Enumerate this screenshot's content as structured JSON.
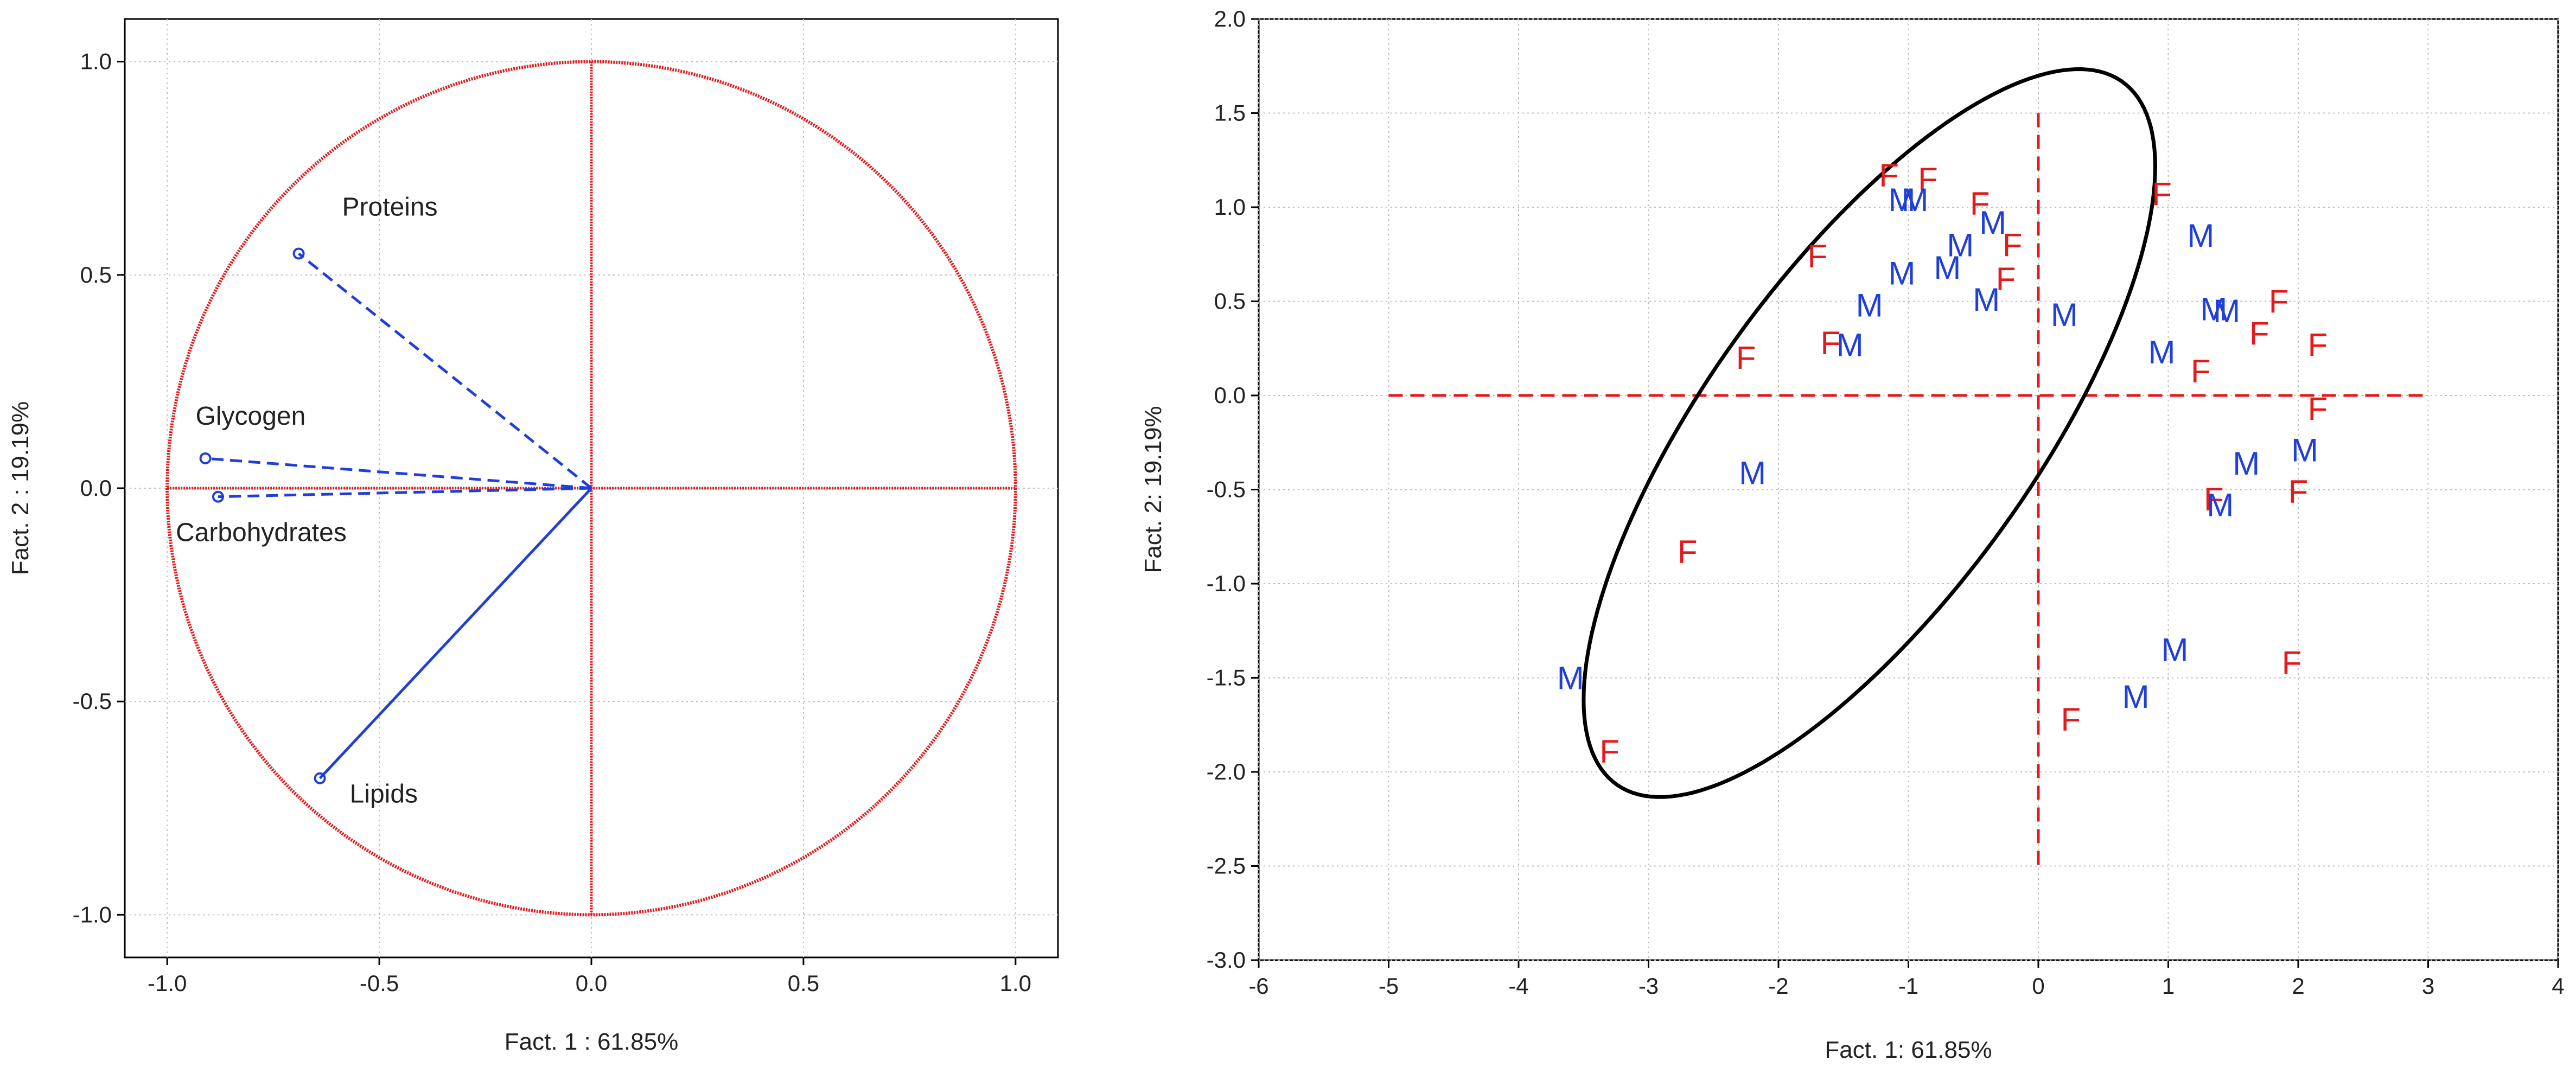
{
  "chart_data": [
    {
      "type": "scatter",
      "subtype": "correlation-circle",
      "xlabel": "Fact.  1 : 61.85%",
      "ylabel": "Fact.  2 : 19.19%",
      "xlim": [
        -1.1,
        1.1
      ],
      "ylim": [
        -1.1,
        1.1
      ],
      "xticks": [
        "-1.0",
        "-0.5",
        "0.0",
        "0.5",
        "1.0"
      ],
      "yticks": [
        "-1.0",
        "-0.5",
        "0.0",
        "0.5",
        "1.0"
      ],
      "grid": true,
      "unit_circle": {
        "radius": 1.0,
        "color": "#e31a1c"
      },
      "variables": [
        {
          "name": "Proteins",
          "x": -0.69,
          "y": 0.55,
          "line": "dashed"
        },
        {
          "name": "Glycogen",
          "x": -0.91,
          "y": 0.07,
          "line": "dashed"
        },
        {
          "name": "Carbohydrates",
          "x": -0.88,
          "y": -0.02,
          "line": "dashed"
        },
        {
          "name": "Lipids",
          "x": -0.64,
          "y": -0.68,
          "line": "solid"
        }
      ],
      "vector_color": "#1f3fd8"
    },
    {
      "type": "scatter",
      "xlabel": "Fact.  1: 61.85%",
      "ylabel": "Fact.  2: 19.19%",
      "xlim": [
        -6,
        4
      ],
      "ylim": [
        -3.0,
        2.0
      ],
      "xticks": [
        "-6",
        "-5",
        "-4",
        "-3",
        "-2",
        "-1",
        "0",
        "1",
        "2",
        "3",
        "4"
      ],
      "yticks": [
        "-3.0",
        "-2.5",
        "-2.0",
        "-1.5",
        "-1.0",
        "-0.5",
        "0.0",
        "0.5",
        "1.0",
        "1.5",
        "2.0"
      ],
      "grid": true,
      "colors": {
        "F": "#e31a1c",
        "M": "#1f3fd8"
      },
      "points": [
        {
          "label": "F",
          "x": -1.15,
          "y": 1.17
        },
        {
          "label": "F",
          "x": -0.85,
          "y": 1.15
        },
        {
          "label": "F",
          "x": -0.45,
          "y": 1.02
        },
        {
          "label": "F",
          "x": 0.95,
          "y": 1.07
        },
        {
          "label": "F",
          "x": -0.2,
          "y": 0.8
        },
        {
          "label": "F",
          "x": -1.7,
          "y": 0.74
        },
        {
          "label": "F",
          "x": -0.25,
          "y": 0.62
        },
        {
          "label": "F",
          "x": 1.85,
          "y": 0.5
        },
        {
          "label": "F",
          "x": 1.7,
          "y": 0.33
        },
        {
          "label": "F",
          "x": 2.15,
          "y": 0.27
        },
        {
          "label": "F",
          "x": -1.6,
          "y": 0.28
        },
        {
          "label": "F",
          "x": -2.25,
          "y": 0.2
        },
        {
          "label": "F",
          "x": 1.25,
          "y": 0.13
        },
        {
          "label": "F",
          "x": 2.15,
          "y": -0.07
        },
        {
          "label": "F",
          "x": 1.35,
          "y": -0.55
        },
        {
          "label": "F",
          "x": 2.0,
          "y": -0.51
        },
        {
          "label": "F",
          "x": -2.7,
          "y": -0.83
        },
        {
          "label": "F",
          "x": 1.95,
          "y": -1.42
        },
        {
          "label": "F",
          "x": 0.25,
          "y": -1.72
        },
        {
          "label": "F",
          "x": -3.3,
          "y": -1.89
        },
        {
          "label": "M",
          "x": -1.05,
          "y": 1.04
        },
        {
          "label": "M",
          "x": -0.95,
          "y": 1.04
        },
        {
          "label": "M",
          "x": -0.35,
          "y": 0.92
        },
        {
          "label": "M",
          "x": -0.6,
          "y": 0.8
        },
        {
          "label": "M",
          "x": 1.25,
          "y": 0.85
        },
        {
          "label": "M",
          "x": -1.05,
          "y": 0.65
        },
        {
          "label": "M",
          "x": -0.7,
          "y": 0.68
        },
        {
          "label": "M",
          "x": -1.3,
          "y": 0.48
        },
        {
          "label": "M",
          "x": -0.4,
          "y": 0.51
        },
        {
          "label": "M",
          "x": 0.2,
          "y": 0.43
        },
        {
          "label": "M",
          "x": 1.35,
          "y": 0.46
        },
        {
          "label": "M",
          "x": 1.45,
          "y": 0.45
        },
        {
          "label": "M",
          "x": -1.45,
          "y": 0.27
        },
        {
          "label": "M",
          "x": 0.95,
          "y": 0.23
        },
        {
          "label": "M",
          "x": 2.05,
          "y": -0.29
        },
        {
          "label": "M",
          "x": 1.6,
          "y": -0.36
        },
        {
          "label": "M",
          "x": -2.2,
          "y": -0.41
        },
        {
          "label": "M",
          "x": 1.4,
          "y": -0.58
        },
        {
          "label": "M",
          "x": 1.05,
          "y": -1.35
        },
        {
          "label": "M",
          "x": 0.75,
          "y": -1.6
        },
        {
          "label": "M",
          "x": -3.6,
          "y": -1.5
        }
      ],
      "reference_lines": {
        "x": 0,
        "y": 0,
        "style": "dashed",
        "color": "#e31a1c",
        "x_span": [
          -5,
          3
        ],
        "y_span": [
          -2.5,
          1.5
        ]
      },
      "ellipse": {
        "cx": -1.3,
        "cy": -0.2,
        "rx": 2.73,
        "ry": 1.06,
        "angle_deg": 40,
        "color": "#000000"
      }
    }
  ]
}
